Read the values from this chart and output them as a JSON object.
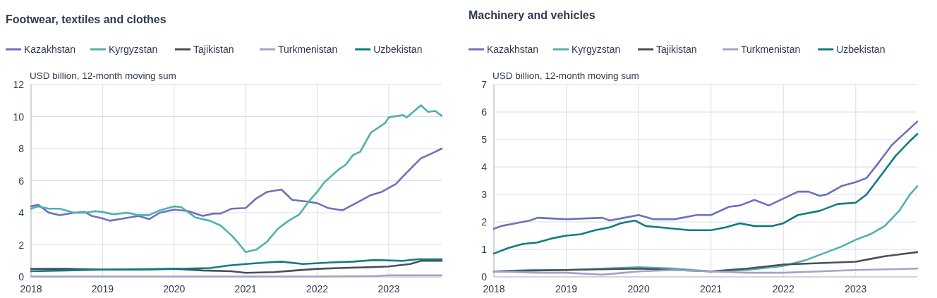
{
  "chart_data": [
    {
      "type": "line",
      "title": "Footwear, textiles and clothes",
      "ylabel": "USD billion, 12-month moving sum",
      "legend": "top",
      "grid": true,
      "xlim": [
        2018,
        2023.74
      ],
      "xticks": [
        2018,
        2019,
        2020,
        2021,
        2022,
        2023
      ],
      "ylim": [
        0,
        12
      ],
      "yticks": [
        0,
        2,
        4,
        6,
        8,
        10,
        12
      ],
      "series": [
        {
          "name": "Kazakhstan",
          "color": "#6b72b8",
          "x": [
            2018,
            2018.1,
            2018.25,
            2018.4,
            2018.6,
            2018.75,
            2018.85,
            2019,
            2019.1,
            2019.3,
            2019.5,
            2019.65,
            2019.8,
            2020,
            2020.2,
            2020.4,
            2020.55,
            2020.65,
            2020.8,
            2021,
            2021.15,
            2021.3,
            2021.5,
            2021.65,
            2021.85,
            2022,
            2022.15,
            2022.35,
            2022.5,
            2022.75,
            2022.9,
            2023.1,
            2023.25,
            2023.45,
            2023.6,
            2023.74
          ],
          "values": [
            4.4,
            4.5,
            4.0,
            3.85,
            4.0,
            4.05,
            3.8,
            3.65,
            3.5,
            3.65,
            3.8,
            3.6,
            4.0,
            4.2,
            4.1,
            3.8,
            3.95,
            3.95,
            4.25,
            4.3,
            4.9,
            5.3,
            5.45,
            4.8,
            4.7,
            4.6,
            4.3,
            4.15,
            4.5,
            5.1,
            5.3,
            5.8,
            6.5,
            7.4,
            7.7,
            8.0
          ]
        },
        {
          "name": "Kyrgyzstan",
          "color": "#4fb0b0",
          "x": [
            2018,
            2018.1,
            2018.25,
            2018.4,
            2018.6,
            2018.75,
            2018.9,
            2019,
            2019.15,
            2019.35,
            2019.5,
            2019.65,
            2019.8,
            2020,
            2020.1,
            2020.3,
            2020.5,
            2020.65,
            2020.8,
            2020.9,
            2021,
            2021.15,
            2021.3,
            2021.45,
            2021.6,
            2021.75,
            2021.9,
            2022,
            2022.1,
            2022.3,
            2022.4,
            2022.5,
            2022.6,
            2022.75,
            2022.95,
            2023,
            2023.2,
            2023.25,
            2023.45,
            2023.55,
            2023.65,
            2023.74
          ],
          "values": [
            4.25,
            4.4,
            4.25,
            4.25,
            4.0,
            4.0,
            4.1,
            4.05,
            3.9,
            4.0,
            3.85,
            3.85,
            4.15,
            4.4,
            4.35,
            3.7,
            3.5,
            3.2,
            2.6,
            2.1,
            1.55,
            1.7,
            2.2,
            3.0,
            3.5,
            3.9,
            4.8,
            5.3,
            5.9,
            6.7,
            7.0,
            7.6,
            7.8,
            9.0,
            9.6,
            9.95,
            10.1,
            9.95,
            10.7,
            10.3,
            10.35,
            10.05
          ]
        },
        {
          "name": "Tajikistan",
          "color": "#4a4f5a",
          "x": [
            2018,
            2018.5,
            2019,
            2019.5,
            2020,
            2020.4,
            2020.8,
            2021,
            2021.4,
            2021.7,
            2022,
            2022.3,
            2022.7,
            2023,
            2023.3,
            2023.45,
            2023.74
          ],
          "values": [
            0.5,
            0.5,
            0.45,
            0.45,
            0.5,
            0.4,
            0.35,
            0.25,
            0.3,
            0.4,
            0.5,
            0.55,
            0.6,
            0.65,
            0.8,
            1.0,
            1.0
          ]
        },
        {
          "name": "Turkmenistan",
          "color": "#a3a3c9",
          "x": [
            2018,
            2020,
            2022,
            2022.8,
            2023,
            2023.74
          ],
          "values": [
            0.02,
            0.02,
            0.02,
            0.05,
            0.1,
            0.1
          ]
        },
        {
          "name": "Uzbekistan",
          "color": "#117b82",
          "x": [
            2018,
            2018.5,
            2019,
            2020,
            2020.5,
            2020.75,
            2021,
            2021.3,
            2021.5,
            2021.8,
            2022.2,
            2022.5,
            2022.8,
            2023.2,
            2023.4,
            2023.74
          ],
          "values": [
            0.35,
            0.4,
            0.45,
            0.5,
            0.55,
            0.7,
            0.8,
            0.9,
            0.95,
            0.8,
            0.9,
            0.95,
            1.05,
            1.0,
            1.1,
            1.1
          ]
        }
      ]
    },
    {
      "type": "line",
      "title": "Machinery and vehicles",
      "ylabel": "USD billion, 12-month moving sum",
      "legend": "top",
      "grid": true,
      "xlim": [
        2018,
        2023.85
      ],
      "xticks": [
        2018,
        2019,
        2020,
        2021,
        2022,
        2023
      ],
      "ylim": [
        0,
        7
      ],
      "yticks": [
        0,
        1,
        2,
        3,
        4,
        5,
        6,
        7
      ],
      "series": [
        {
          "name": "Kazakhstan",
          "color": "#6b72b8",
          "x": [
            2018,
            2018.1,
            2018.3,
            2018.5,
            2018.6,
            2019,
            2019.5,
            2019.6,
            2019.8,
            2020,
            2020.2,
            2020.5,
            2020.8,
            2021,
            2021.25,
            2021.4,
            2021.6,
            2021.8,
            2022,
            2022.2,
            2022.35,
            2022.5,
            2022.6,
            2022.8,
            2023,
            2023.15,
            2023.3,
            2023.5,
            2023.85
          ],
          "values": [
            1.75,
            1.85,
            1.95,
            2.05,
            2.15,
            2.1,
            2.15,
            2.05,
            2.15,
            2.25,
            2.1,
            2.1,
            2.25,
            2.25,
            2.55,
            2.6,
            2.8,
            2.6,
            2.85,
            3.1,
            3.1,
            2.95,
            3.0,
            3.3,
            3.45,
            3.6,
            4.1,
            4.8,
            5.65
          ]
        },
        {
          "name": "Kyrgyzstan",
          "color": "#4fb0b0",
          "x": [
            2018,
            2018.5,
            2019,
            2019.5,
            2020,
            2020.5,
            2021,
            2021.5,
            2022,
            2022.3,
            2022.6,
            2022.8,
            2023,
            2023.2,
            2023.4,
            2023.6,
            2023.75,
            2023.85
          ],
          "values": [
            0.2,
            0.25,
            0.25,
            0.3,
            0.35,
            0.3,
            0.2,
            0.25,
            0.4,
            0.6,
            0.9,
            1.1,
            1.35,
            1.55,
            1.85,
            2.4,
            3.0,
            3.3
          ]
        },
        {
          "name": "Tajikistan",
          "color": "#4a4f5a",
          "x": [
            2018,
            2019,
            2020,
            2020.5,
            2021,
            2021.5,
            2022,
            2022.5,
            2023,
            2023.2,
            2023.4,
            2023.85
          ],
          "values": [
            0.2,
            0.25,
            0.3,
            0.25,
            0.2,
            0.3,
            0.45,
            0.5,
            0.55,
            0.65,
            0.75,
            0.9
          ]
        },
        {
          "name": "Turkmenistan",
          "color": "#a3a3c9",
          "x": [
            2018,
            2018.6,
            2019,
            2019.5,
            2019.8,
            2020,
            2020.5,
            2021,
            2021.5,
            2022,
            2022.5,
            2023,
            2023.85
          ],
          "values": [
            0.2,
            0.15,
            0.15,
            0.08,
            0.15,
            0.2,
            0.25,
            0.2,
            0.15,
            0.15,
            0.2,
            0.25,
            0.3
          ]
        },
        {
          "name": "Uzbekistan",
          "color": "#117b82",
          "x": [
            2018,
            2018.2,
            2018.4,
            2018.6,
            2018.8,
            2019,
            2019.2,
            2019.4,
            2019.6,
            2019.75,
            2019.95,
            2020.1,
            2020.3,
            2020.5,
            2020.7,
            2021,
            2021.2,
            2021.4,
            2021.6,
            2021.85,
            2022,
            2022.2,
            2022.5,
            2022.75,
            2023,
            2023.15,
            2023.35,
            2023.55,
            2023.75,
            2023.85
          ],
          "values": [
            0.85,
            1.05,
            1.2,
            1.25,
            1.4,
            1.5,
            1.55,
            1.7,
            1.8,
            1.95,
            2.05,
            1.85,
            1.8,
            1.75,
            1.7,
            1.7,
            1.8,
            1.95,
            1.85,
            1.85,
            1.95,
            2.25,
            2.4,
            2.65,
            2.7,
            3.0,
            3.7,
            4.4,
            4.95,
            5.2
          ]
        }
      ]
    }
  ]
}
